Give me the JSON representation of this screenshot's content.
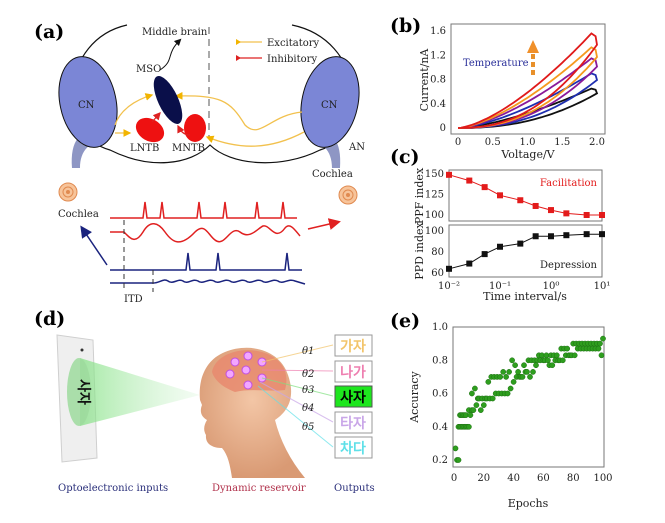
{
  "panels": {
    "a": {
      "label": "(a)",
      "middle_brain": "Middle brain",
      "legend": {
        "excitatory": "Excitatory",
        "inhibitory": "Inhibitory"
      },
      "cn_left": "CN",
      "cn_right": "CN",
      "mso": "MSO",
      "lntb": "LNTB",
      "mntb": "MNTB",
      "an": "AN",
      "cochlea_left": "Cochlea",
      "cochlea_right": "Cochlea",
      "itd": "ITD",
      "colors": {
        "cn": "#7b86d6",
        "mso": "#0a0f4a",
        "nucleus": "#ee1111",
        "excitatory": "#f2c14e",
        "inhibitory": "#dd2222",
        "spike_red": "#e02020",
        "spike_blue": "#1a237e"
      }
    },
    "d": {
      "label": "(d)",
      "input_chars": "사자",
      "thetas": [
        "θ1",
        "θ2",
        "θ3",
        "θ4",
        "θ5"
      ],
      "outputs": [
        {
          "text": "가자",
          "color": "#f2c46a",
          "selected": false
        },
        {
          "text": "나가",
          "color": "#ee7fb0",
          "selected": false
        },
        {
          "text": "사자",
          "color": "#000000",
          "selected": true
        },
        {
          "text": "타자",
          "color": "#c9a6e8",
          "selected": false
        },
        {
          "text": "차다",
          "color": "#5fe0e8",
          "selected": false
        }
      ],
      "captions": {
        "inputs": "Optoelectronic inputs",
        "reservoir": "Dynamic reservoir",
        "outputs": "Outputs"
      }
    }
  },
  "chart_data": [
    {
      "id": "b",
      "label": "(b)",
      "type": "line",
      "xlabel": "Voltage/V",
      "ylabel": "Current/nA",
      "xlim": [
        0,
        2.0
      ],
      "ylim": [
        0,
        1.6
      ],
      "xticks": [
        "0",
        "0.5",
        "1.0",
        "1.5",
        "2.0"
      ],
      "yticks": [
        "0",
        "0.4",
        "0.8",
        "1.2",
        "1.6"
      ],
      "annotation": "Temperature",
      "series": [
        {
          "peak_current": 0.65,
          "color": "#111111"
        },
        {
          "peak_current": 0.9,
          "color": "#1f2fb0"
        },
        {
          "peak_current": 1.15,
          "color": "#8a1a9a"
        },
        {
          "peak_current": 1.33,
          "color": "#f59a1e"
        },
        {
          "peak_current": 1.56,
          "color": "#e01a1a"
        }
      ]
    },
    {
      "id": "c-top",
      "label": "(c)",
      "type": "line",
      "ylabel": "PPF index",
      "annotation": "Facilitation",
      "xscale": "log",
      "xlim": [
        0.01,
        10
      ],
      "ylim": [
        95,
        155
      ],
      "yticks": [
        "150",
        "125",
        "100"
      ],
      "color": "#e31b1b",
      "x": [
        0.01,
        0.025,
        0.05,
        0.1,
        0.25,
        0.5,
        1,
        2,
        5,
        10
      ],
      "y": [
        149,
        142,
        134,
        124,
        118,
        111,
        106,
        102,
        100,
        100
      ]
    },
    {
      "id": "c-bottom",
      "type": "line",
      "xlabel": "Time interval/s",
      "ylabel": "PPD index",
      "annotation": "Depression",
      "xscale": "log",
      "xlim": [
        0.01,
        10
      ],
      "ylim": [
        60,
        102
      ],
      "xticks": [
        "10⁻²",
        "10⁻¹",
        "10⁰",
        "10¹"
      ],
      "yticks": [
        "100",
        "80",
        "60"
      ],
      "color": "#111111",
      "x": [
        0.01,
        0.025,
        0.05,
        0.1,
        0.25,
        0.5,
        1,
        2,
        5,
        10
      ],
      "y": [
        64,
        69,
        78,
        85,
        88,
        95,
        95,
        96,
        97,
        97
      ]
    },
    {
      "id": "e",
      "label": "(e)",
      "type": "scatter",
      "xlabel": "Epochs",
      "ylabel": "Accuracy",
      "xlim": [
        0,
        100
      ],
      "ylim": [
        0.15,
        1.0
      ],
      "xticks": [
        "0",
        "20",
        "40",
        "60",
        "80",
        "100"
      ],
      "yticks": [
        "0.2",
        "0.4",
        "0.6",
        "0.8",
        "1.0"
      ],
      "color": "#2e9e1e",
      "points": [
        [
          1,
          0.27
        ],
        [
          2,
          0.2
        ],
        [
          3,
          0.2
        ],
        [
          3,
          0.4
        ],
        [
          4,
          0.4
        ],
        [
          4,
          0.47
        ],
        [
          5,
          0.4
        ],
        [
          5,
          0.47
        ],
        [
          6,
          0.4
        ],
        [
          6,
          0.47
        ],
        [
          7,
          0.4
        ],
        [
          7,
          0.47
        ],
        [
          8,
          0.4
        ],
        [
          8,
          0.47
        ],
        [
          9,
          0.4
        ],
        [
          10,
          0.4
        ],
        [
          10,
          0.5
        ],
        [
          11,
          0.47
        ],
        [
          12,
          0.6
        ],
        [
          12,
          0.5
        ],
        [
          13,
          0.5
        ],
        [
          14,
          0.63
        ],
        [
          15,
          0.53
        ],
        [
          16,
          0.57
        ],
        [
          17,
          0.57
        ],
        [
          18,
          0.5
        ],
        [
          19,
          0.57
        ],
        [
          20,
          0.53
        ],
        [
          21,
          0.57
        ],
        [
          22,
          0.57
        ],
        [
          23,
          0.67
        ],
        [
          24,
          0.57
        ],
        [
          25,
          0.7
        ],
        [
          26,
          0.57
        ],
        [
          27,
          0.7
        ],
        [
          28,
          0.6
        ],
        [
          29,
          0.7
        ],
        [
          30,
          0.6
        ],
        [
          31,
          0.7
        ],
        [
          32,
          0.6
        ],
        [
          33,
          0.73
        ],
        [
          34,
          0.6
        ],
        [
          35,
          0.7
        ],
        [
          36,
          0.6
        ],
        [
          37,
          0.73
        ],
        [
          38,
          0.63
        ],
        [
          39,
          0.8
        ],
        [
          40,
          0.67
        ],
        [
          41,
          0.77
        ],
        [
          42,
          0.7
        ],
        [
          43,
          0.73
        ],
        [
          44,
          0.7
        ],
        [
          45,
          0.7
        ],
        [
          46,
          0.7
        ],
        [
          47,
          0.77
        ],
        [
          48,
          0.73
        ],
        [
          49,
          0.73
        ],
        [
          50,
          0.8
        ],
        [
          51,
          0.7
        ],
        [
          52,
          0.8
        ],
        [
          53,
          0.73
        ],
        [
          54,
          0.8
        ],
        [
          55,
          0.77
        ],
        [
          56,
          0.8
        ],
        [
          57,
          0.83
        ],
        [
          58,
          0.8
        ],
        [
          59,
          0.83
        ],
        [
          60,
          0.8
        ],
        [
          61,
          0.8
        ],
        [
          62,
          0.83
        ],
        [
          63,
          0.8
        ],
        [
          64,
          0.77
        ],
        [
          65,
          0.83
        ],
        [
          66,
          0.77
        ],
        [
          67,
          0.83
        ],
        [
          68,
          0.8
        ],
        [
          69,
          0.83
        ],
        [
          70,
          0.8
        ],
        [
          71,
          0.8
        ],
        [
          72,
          0.87
        ],
        [
          73,
          0.8
        ],
        [
          74,
          0.87
        ],
        [
          75,
          0.83
        ],
        [
          76,
          0.87
        ],
        [
          77,
          0.83
        ],
        [
          78,
          0.83
        ],
        [
          79,
          0.83
        ],
        [
          80,
          0.9
        ],
        [
          81,
          0.83
        ],
        [
          82,
          0.9
        ],
        [
          83,
          0.87
        ],
        [
          84,
          0.9
        ],
        [
          85,
          0.87
        ],
        [
          86,
          0.9
        ],
        [
          87,
          0.87
        ],
        [
          88,
          0.9
        ],
        [
          89,
          0.87
        ],
        [
          90,
          0.9
        ],
        [
          91,
          0.87
        ],
        [
          92,
          0.9
        ],
        [
          93,
          0.87
        ],
        [
          94,
          0.9
        ],
        [
          95,
          0.87
        ],
        [
          96,
          0.9
        ],
        [
          97,
          0.87
        ],
        [
          98,
          0.9
        ],
        [
          99,
          0.83
        ],
        [
          100,
          0.93
        ]
      ]
    }
  ]
}
